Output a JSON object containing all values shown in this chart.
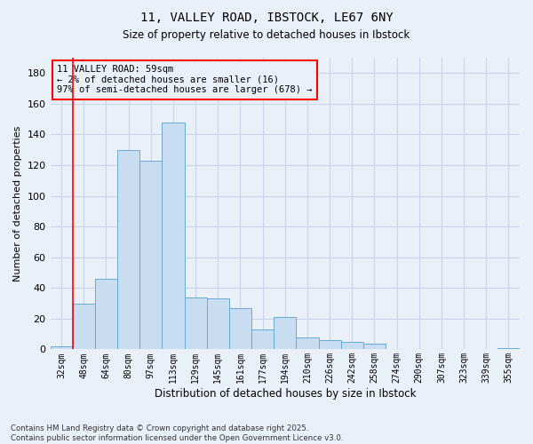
{
  "title1": "11, VALLEY ROAD, IBSTOCK, LE67 6NY",
  "title2": "Size of property relative to detached houses in Ibstock",
  "xlabel": "Distribution of detached houses by size in Ibstock",
  "ylabel": "Number of detached properties",
  "categories": [
    "32sqm",
    "48sqm",
    "64sqm",
    "80sqm",
    "97sqm",
    "113sqm",
    "129sqm",
    "145sqm",
    "161sqm",
    "177sqm",
    "194sqm",
    "210sqm",
    "226sqm",
    "242sqm",
    "258sqm",
    "274sqm",
    "290sqm",
    "307sqm",
    "323sqm",
    "339sqm",
    "355sqm"
  ],
  "values": [
    2,
    30,
    46,
    130,
    123,
    148,
    34,
    33,
    27,
    13,
    21,
    8,
    6,
    5,
    4,
    0,
    0,
    0,
    0,
    0,
    1
  ],
  "bar_color": "#c8dcf2",
  "bar_edge_color": "#6aaad4",
  "grid_color": "#c8d4e8",
  "background_color": "#eaf0f8",
  "annotation_box_text": "11 VALLEY ROAD: 59sqm\n← 2% of detached houses are smaller (16)\n97% of semi-detached houses are larger (678) →",
  "red_line_x": 0.5,
  "footer_text": "Contains HM Land Registry data © Crown copyright and database right 2025.\nContains public sector information licensed under the Open Government Licence v3.0.",
  "ylim": [
    0,
    190
  ],
  "yticks": [
    0,
    20,
    40,
    60,
    80,
    100,
    120,
    140,
    160,
    180
  ]
}
